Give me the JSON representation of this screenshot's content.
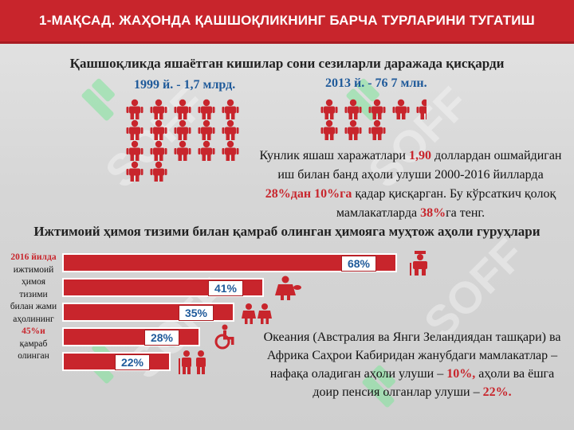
{
  "banner": {
    "title": "1-МАҚСАД. ЖАҲОНДА ҚАШШОҚЛИКНИНГ БАРЧА ТУРЛАРИНИ ТУГАТИШ"
  },
  "section1": {
    "title": "Қашшоқликда яшаётган кишилар сони сезиларли даражада қисқарди",
    "left_year": "1999 й. - 1,7 млрд.",
    "right_year": "2013 й. - 76 7 млн.",
    "left_icons_full": 17,
    "right_icons_full": 7,
    "right_icons_half": 1,
    "stat": {
      "p1": "Кунлик яшаш харажатлари ",
      "h1": "1,90",
      "p2": " доллардан ошмайдиган иш билан банд аҳоли улуши 2000-2016 йилларда ",
      "h2": "28%дан 10%га",
      "p3": " қадар қисқарган. Бу кўрсаткич қолоқ мамлакатларда ",
      "h3": "38%",
      "p4": "га тенг."
    }
  },
  "section2": {
    "title": "Ижтимоий ҳимоя тизими билан қамраб олинган ҳимояга муҳтож аҳоли гуруҳлари",
    "side": {
      "h1": "2016 йилда",
      "p1": " ижтимоий ҳимоя тизими билан жами аҳолининг ",
      "h2": "45%и",
      "p2": " қамраб олинган"
    },
    "bars": [
      {
        "label": "68%",
        "value": 68,
        "icon": "worker-icon"
      },
      {
        "label": "41%",
        "value": 41,
        "icon": "mother-baby-icon"
      },
      {
        "label": "35%",
        "value": 35,
        "icon": "children-icon"
      },
      {
        "label": "28%",
        "value": 28,
        "icon": "wheelchair-icon"
      },
      {
        "label": "22%",
        "value": 22,
        "icon": "elderly-icon"
      }
    ],
    "note": {
      "p1": "Океания (Австралия ва Янги Зеландиядан ташқари) ва Африка Саҳрои Кабиридан жанубдаги мамлакатлар – нафақа оладиган аҳоли улуши – ",
      "h1": "10%,",
      "p2": " аҳоли ва ёшга доир пенсия олганлар улуши – ",
      "h2": "22%."
    }
  },
  "watermark": {
    "text": "SOFF"
  },
  "colors": {
    "accent": "#c8252c",
    "blue": "#1f5a9a",
    "background": "#d9d9d9"
  }
}
